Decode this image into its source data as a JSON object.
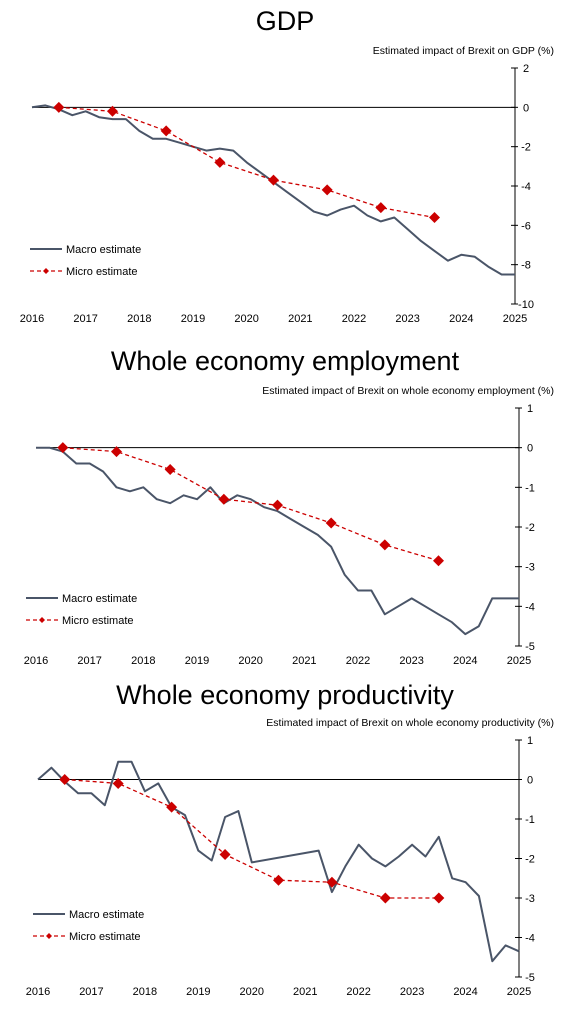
{
  "colors": {
    "macro": "#4a5568",
    "micro": "#cc0000",
    "axis": "#000000"
  },
  "chart_data": [
    {
      "type": "line",
      "title": "GDP",
      "ylabel": "Estimated impact of Brexit on GDP (%)",
      "xlim": [
        2016,
        2025
      ],
      "ylim": [
        -10,
        2
      ],
      "yticks": [
        2,
        0,
        -2,
        -4,
        -6,
        -8,
        -10
      ],
      "xticks": [
        2016,
        2017,
        2018,
        2019,
        2020,
        2021,
        2022,
        2023,
        2024,
        2025
      ],
      "y_axis_side": "right",
      "legend_position": "lower-left",
      "series": [
        {
          "name": "Macro estimate",
          "style": "solid",
          "x": [
            2016.0,
            2016.25,
            2016.5,
            2016.75,
            2017.0,
            2017.25,
            2017.5,
            2017.75,
            2018.0,
            2018.25,
            2018.5,
            2018.75,
            2019.0,
            2019.25,
            2019.5,
            2019.75,
            2020.0,
            2020.25,
            2020.5,
            2020.75,
            2021.0,
            2021.25,
            2021.5,
            2021.75,
            2022.0,
            2022.25,
            2022.5,
            2022.75,
            2023.0,
            2023.25,
            2023.5,
            2023.75,
            2024.0,
            2024.25,
            2024.5,
            2024.75,
            2025.0
          ],
          "y": [
            0.0,
            0.1,
            -0.1,
            -0.4,
            -0.2,
            -0.5,
            -0.6,
            -0.6,
            -1.2,
            -1.6,
            -1.6,
            -1.8,
            -2.0,
            -2.2,
            -2.1,
            -2.2,
            -2.8,
            -3.3,
            -3.8,
            -4.3,
            -4.8,
            -5.3,
            -5.5,
            -5.2,
            -5.0,
            -5.5,
            -5.8,
            -5.6,
            -6.2,
            -6.8,
            -7.3,
            -7.8,
            -7.5,
            -7.6,
            -8.1,
            -8.5,
            -8.5
          ]
        },
        {
          "name": "Micro estimate",
          "style": "dashed-diamond",
          "x": [
            2016.5,
            2017.5,
            2018.5,
            2019.5,
            2020.5,
            2021.5,
            2022.5,
            2023.5
          ],
          "y": [
            0.0,
            -0.2,
            -1.2,
            -2.8,
            -3.7,
            -4.2,
            -5.1,
            -5.6
          ]
        }
      ]
    },
    {
      "type": "line",
      "title": "Whole economy employment",
      "ylabel": "Estimated impact of Brexit on whole economy employment (%)",
      "xlim": [
        2016,
        2025
      ],
      "ylim": [
        -5,
        1
      ],
      "yticks": [
        1,
        0,
        -1,
        -2,
        -3,
        -4,
        -5
      ],
      "xticks": [
        2016,
        2017,
        2018,
        2019,
        2020,
        2021,
        2022,
        2023,
        2024,
        2025
      ],
      "y_axis_side": "right",
      "legend_position": "lower-left",
      "series": [
        {
          "name": "Macro estimate",
          "style": "solid",
          "x": [
            2016.0,
            2016.25,
            2016.5,
            2016.75,
            2017.0,
            2017.25,
            2017.5,
            2017.75,
            2018.0,
            2018.25,
            2018.5,
            2018.75,
            2019.0,
            2019.25,
            2019.5,
            2019.75,
            2020.0,
            2020.25,
            2020.5,
            2020.75,
            2021.0,
            2021.25,
            2021.5,
            2021.75,
            2022.0,
            2022.25,
            2022.5,
            2022.75,
            2023.0,
            2023.25,
            2023.5,
            2023.75,
            2024.0,
            2024.25,
            2024.5,
            2024.75,
            2025.0
          ],
          "y": [
            0.0,
            0.0,
            -0.1,
            -0.4,
            -0.4,
            -0.6,
            -1.0,
            -1.1,
            -1.0,
            -1.3,
            -1.4,
            -1.2,
            -1.3,
            -1.0,
            -1.4,
            -1.2,
            -1.3,
            -1.5,
            -1.6,
            -1.8,
            -2.0,
            -2.2,
            -2.5,
            -3.2,
            -3.6,
            -3.6,
            -4.2,
            -4.0,
            -3.8,
            -4.0,
            -4.2,
            -4.4,
            -4.7,
            -4.5,
            -3.8,
            -3.8,
            -3.8
          ]
        },
        {
          "name": "Micro estimate",
          "style": "dashed-diamond",
          "x": [
            2016.5,
            2017.5,
            2018.5,
            2019.5,
            2020.5,
            2021.5,
            2022.5,
            2023.5
          ],
          "y": [
            0.0,
            -0.1,
            -0.55,
            -1.3,
            -1.45,
            -1.9,
            -2.45,
            -2.85
          ]
        }
      ]
    },
    {
      "type": "line",
      "title": "Whole economy productivity",
      "ylabel": "Estimated impact of Brexit on whole economy productivity (%)",
      "xlim": [
        2016,
        2025
      ],
      "ylim": [
        -5,
        1
      ],
      "yticks": [
        1,
        0,
        -1,
        -2,
        -3,
        -4,
        -5
      ],
      "xticks": [
        2016,
        2017,
        2018,
        2019,
        2020,
        2021,
        2022,
        2023,
        2024,
        2025
      ],
      "y_axis_side": "right",
      "legend_position": "lower-left",
      "series": [
        {
          "name": "Macro estimate",
          "style": "solid",
          "x": [
            2016.0,
            2016.25,
            2016.5,
            2016.75,
            2017.0,
            2017.25,
            2017.5,
            2017.75,
            2018.0,
            2018.25,
            2018.5,
            2018.75,
            2019.0,
            2019.25,
            2019.5,
            2019.75,
            2020.0,
            2021.25,
            2021.5,
            2021.75,
            2022.0,
            2022.25,
            2022.5,
            2022.75,
            2023.0,
            2023.25,
            2023.5,
            2023.75,
            2024.0,
            2024.25,
            2024.5,
            2024.75,
            2025.0
          ],
          "y": [
            0.0,
            0.3,
            -0.05,
            -0.35,
            -0.35,
            -0.65,
            0.45,
            0.45,
            -0.3,
            -0.1,
            -0.7,
            -0.9,
            -1.8,
            -2.05,
            -0.95,
            -0.8,
            -2.1,
            -1.8,
            -2.85,
            -2.2,
            -1.65,
            -2.0,
            -2.2,
            -1.95,
            -1.65,
            -1.95,
            -1.45,
            -2.5,
            -2.6,
            -2.95,
            -4.6,
            -4.2,
            -4.35
          ]
        },
        {
          "name": "Micro estimate",
          "style": "dashed-diamond",
          "x": [
            2016.5,
            2017.5,
            2018.5,
            2019.5,
            2020.5,
            2021.5,
            2022.5,
            2023.5
          ],
          "y": [
            0.0,
            -0.1,
            -0.7,
            -1.9,
            -2.55,
            -2.6,
            -3.0,
            -3.0
          ]
        }
      ]
    }
  ]
}
